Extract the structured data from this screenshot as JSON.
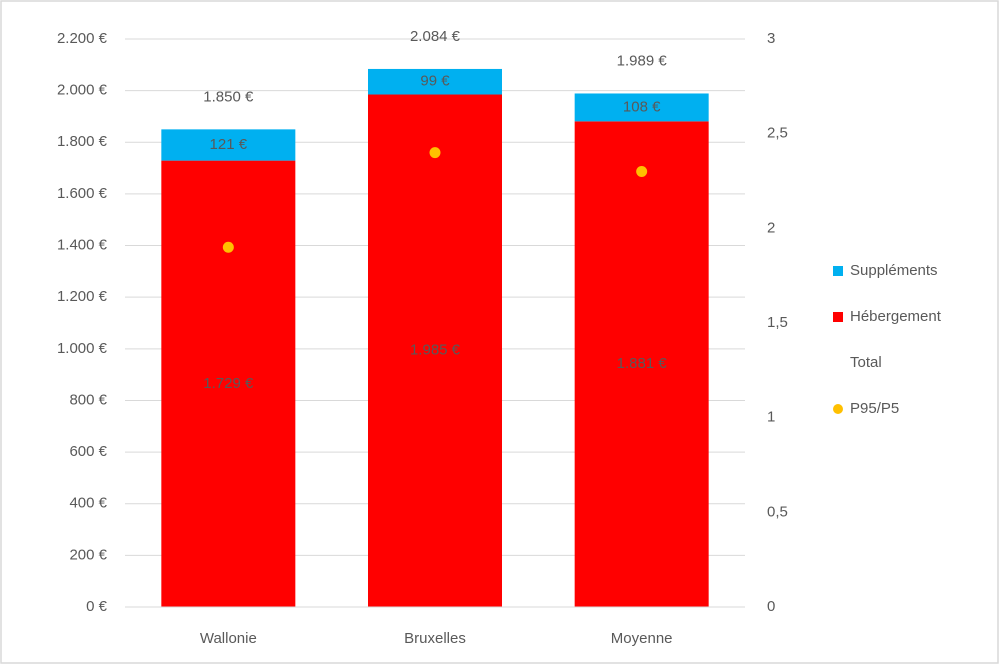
{
  "chart_data": {
    "type": "bar",
    "stacked": true,
    "categories": [
      "Wallonie",
      "Bruxelles",
      "Moyenne"
    ],
    "series": [
      {
        "name": "Suppléments",
        "mark": "bar",
        "color": "#00b0f0",
        "values": [
          121,
          99,
          108
        ],
        "value_labels": [
          "121 €",
          "99 €",
          "108 €"
        ]
      },
      {
        "name": "Hébergement",
        "mark": "bar",
        "color": "#ff0000",
        "values": [
          1729,
          1985,
          1881
        ],
        "value_labels": [
          "1.729 €",
          "1.985 €",
          "1.881 €"
        ]
      },
      {
        "name": "Total",
        "mark": "label",
        "values": [
          1850,
          2084,
          1989
        ],
        "value_labels": [
          "1.850 €",
          "2.084 €",
          "1.989 €"
        ]
      },
      {
        "name": "P95/P5",
        "mark": "dot",
        "axis": "y2",
        "color": "#ffc000",
        "values": [
          1.9,
          2.4,
          2.3
        ]
      }
    ],
    "ylim": [
      0,
      2200
    ],
    "yticks": [
      {
        "value": 0,
        "label": "0 €"
      },
      {
        "value": 200,
        "label": "200 €"
      },
      {
        "value": 400,
        "label": "400 €"
      },
      {
        "value": 600,
        "label": "600 €"
      },
      {
        "value": 800,
        "label": "800 €"
      },
      {
        "value": 1000,
        "label": "1.000 €"
      },
      {
        "value": 1200,
        "label": "1.200 €"
      },
      {
        "value": 1400,
        "label": "1.400 €"
      },
      {
        "value": 1600,
        "label": "1.600 €"
      },
      {
        "value": 1800,
        "label": "1.800 €"
      },
      {
        "value": 2000,
        "label": "2.000 €"
      },
      {
        "value": 2200,
        "label": "2.200 €"
      }
    ],
    "y2lim": [
      0,
      3
    ],
    "y2ticks": [
      0,
      {
        "value": 0.5,
        "label": "0,5"
      },
      1,
      {
        "value": 1.5,
        "label": "1,5"
      },
      2,
      {
        "value": 2.5,
        "label": "2,5"
      },
      3
    ],
    "grid": true,
    "legend": "right"
  }
}
